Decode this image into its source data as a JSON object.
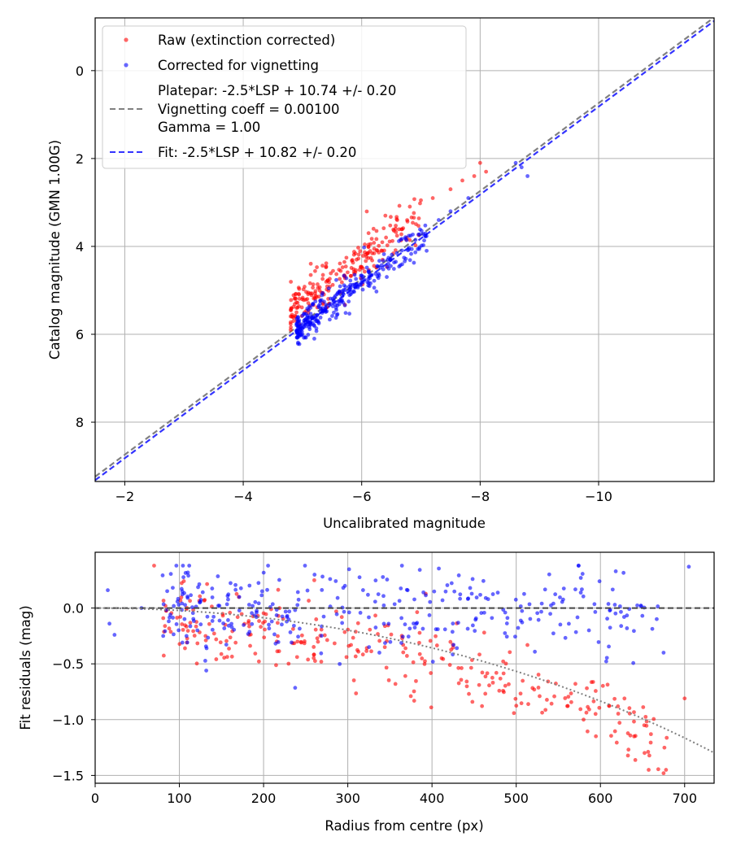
{
  "chart_data": [
    {
      "type": "scatter",
      "title": "",
      "xlabel": "Uncalibrated magnitude",
      "ylabel": "Catalog magnitude (GMN 1.00G)",
      "xlim": [
        -1.5,
        -11.95
      ],
      "ylim": [
        9.35,
        -1.2
      ],
      "x_inverted": true,
      "y_inverted": true,
      "grid": true,
      "legend_position": "top-left",
      "xticks": [
        -2,
        -4,
        -6,
        -8,
        -10
      ],
      "xtick_labels": [
        "−2",
        "−4",
        "−6",
        "−8",
        "−10"
      ],
      "yticks": [
        0,
        2,
        4,
        6,
        8
      ],
      "ytick_labels": [
        "0",
        "2",
        "4",
        "6",
        "8"
      ],
      "legend": {
        "raw": "Raw (extinction corrected)",
        "corrected": "Corrected for vignetting",
        "platepar_lines": [
          "Platepar: -2.5*LSP + 10.74 +/- 0.20",
          "Vignetting coeff = 0.00100",
          "Gamma = 1.00"
        ],
        "fit": "Fit: -2.5*LSP + 10.82 +/- 0.20"
      },
      "series": [
        {
          "name": "Raw (extinction corrected)",
          "kind": "scatter",
          "color": "#ff0000",
          "cloud": {
            "count": 230,
            "x_range": [
              -4.8,
              -7.0
            ],
            "slope": 1.0,
            "intercept": 10.3,
            "spread": 0.25
          },
          "points": [
            {
              "x": -8.0,
              "y": 2.1
            },
            {
              "x": -8.1,
              "y": 2.3
            },
            {
              "x": -7.9,
              "y": 2.4
            },
            {
              "x": -7.7,
              "y": 2.5
            },
            {
              "x": -7.5,
              "y": 2.7
            },
            {
              "x": -7.2,
              "y": 2.9
            },
            {
              "x": -7.0,
              "y": 2.95
            },
            {
              "x": -6.6,
              "y": 3.4
            },
            {
              "x": -6.4,
              "y": 3.3
            },
            {
              "x": -6.2,
              "y": 3.6
            },
            {
              "x": -4.8,
              "y": 5.9
            },
            {
              "x": -4.9,
              "y": 5.5
            }
          ]
        },
        {
          "name": "Corrected for vignetting",
          "kind": "scatter",
          "color": "#0000ff",
          "cloud": {
            "count": 300,
            "x_range": [
              -4.9,
              -7.1
            ],
            "slope": 1.0,
            "intercept": 10.82,
            "spread": 0.18
          },
          "points": [
            {
              "x": -8.6,
              "y": 2.1
            },
            {
              "x": -8.8,
              "y": 2.4
            },
            {
              "x": -8.7,
              "y": 2.2
            },
            {
              "x": -7.8,
              "y": 2.9
            },
            {
              "x": -7.5,
              "y": 3.2
            },
            {
              "x": -7.3,
              "y": 3.4
            },
            {
              "x": -5.2,
              "y": 6.1
            },
            {
              "x": -5.0,
              "y": 6.0
            }
          ]
        },
        {
          "name": "Platepar: -2.5*LSP + 10.74 +/- 0.20",
          "kind": "line",
          "style": "dashed",
          "color": "#808080",
          "slope": 1.0,
          "intercept": 10.74
        },
        {
          "name": "Fit: -2.5*LSP + 10.82 +/- 0.20",
          "kind": "line",
          "style": "dashed",
          "color": "#3333ff",
          "slope": 1.0,
          "intercept": 10.82
        }
      ]
    },
    {
      "type": "scatter",
      "title": "",
      "xlabel": "Radius from centre (px)",
      "ylabel": "Fit residuals (mag)",
      "xlim": [
        0,
        735
      ],
      "ylim": [
        -1.57,
        0.5
      ],
      "grid": true,
      "xticks": [
        0,
        100,
        200,
        300,
        400,
        500,
        600,
        700
      ],
      "xtick_labels": [
        "0",
        "100",
        "200",
        "300",
        "400",
        "500",
        "600",
        "700"
      ],
      "yticks": [
        0.0,
        -0.5,
        -1.0,
        -1.5
      ],
      "ytick_labels": [
        "0.0",
        "−0.5",
        "−1.0",
        "−1.5"
      ],
      "series": [
        {
          "name": "Raw residuals",
          "kind": "scatter",
          "color": "#ff0000",
          "cloud": {
            "count": 300,
            "r_range": [
              80,
              680
            ],
            "model": "vignetting",
            "vignetting_coeff": 0.001,
            "spread": 0.2
          },
          "points": [
            {
              "x": 675,
              "y": -1.48
            },
            {
              "x": 700,
              "y": -0.81
            },
            {
              "x": 640,
              "y": -1.15
            },
            {
              "x": 660,
              "y": -1.13
            },
            {
              "x": 580,
              "y": -1.0
            },
            {
              "x": 70,
              "y": 0.38
            }
          ]
        },
        {
          "name": "Corrected residuals",
          "kind": "scatter",
          "color": "#0000ff",
          "cloud": {
            "count": 320,
            "r_range": [
              80,
              680
            ],
            "model": "flat",
            "spread": 0.2
          },
          "points": [
            {
              "x": 705,
              "y": 0.37
            },
            {
              "x": 675,
              "y": -0.4
            },
            {
              "x": 15,
              "y": 0.16
            },
            {
              "x": 17,
              "y": -0.14
            },
            {
              "x": 23,
              "y": -0.24
            },
            {
              "x": 55,
              "y": 0.0
            }
          ]
        },
        {
          "name": "Zero line",
          "kind": "line",
          "style": "dashed",
          "color": "#444444",
          "slope": 0.0,
          "intercept": 0.0
        },
        {
          "name": "Vignetting model",
          "kind": "curve",
          "style": "dotted",
          "color": "#808080",
          "model": "vignetting",
          "vignetting_coeff": 0.001
        }
      ]
    }
  ]
}
